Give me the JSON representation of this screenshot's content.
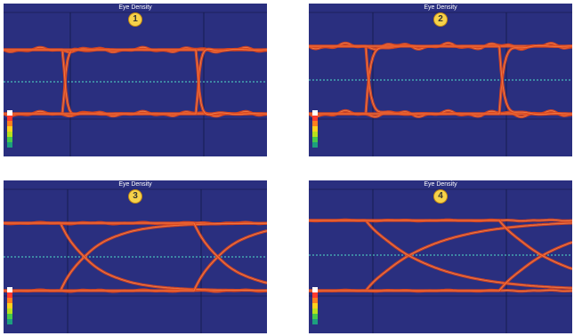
{
  "figure": {
    "panels": [
      {
        "title": "Eye Density",
        "badge": "1"
      },
      {
        "title": "Eye Density",
        "badge": "2"
      },
      {
        "title": "Eye Density",
        "badge": "3"
      },
      {
        "title": "Eye Density",
        "badge": "4"
      }
    ]
  },
  "colors": {
    "background": "#2a2f7f",
    "trace": "#e0471c",
    "trace_core": "#f08a55",
    "grid": "#11163f",
    "threshold": "#52e0c8",
    "badge_fill": "#f6d24a",
    "title_text": "#ffffff"
  },
  "chart_data": [
    {
      "type": "line",
      "title": "Eye Density",
      "badge": "1",
      "description_variant": "sharp transitions with ringing on both rails",
      "series": [
        {
          "values": []
        }
      ],
      "unit_intervals": 2,
      "levels": [
        "high",
        "low"
      ],
      "threshold_line": "dashed"
    },
    {
      "type": "line",
      "title": "Eye Density",
      "badge": "2",
      "series": [
        {
          "values": []
        }
      ],
      "unit_intervals": 2,
      "levels": [
        "high",
        "low"
      ],
      "threshold_line": "dashed"
    },
    {
      "type": "line",
      "title": "Eye Density",
      "badge": "3",
      "series": [
        {
          "values": []
        }
      ],
      "unit_intervals": 2,
      "levels": [
        "high",
        "low"
      ],
      "threshold_line": "dashed"
    },
    {
      "type": "line",
      "title": "Eye Density",
      "badge": "4",
      "series": [
        {
          "values": []
        }
      ],
      "unit_intervals": 2,
      "levels": [
        "high",
        "low"
      ],
      "threshold_line": "dashed"
    }
  ]
}
